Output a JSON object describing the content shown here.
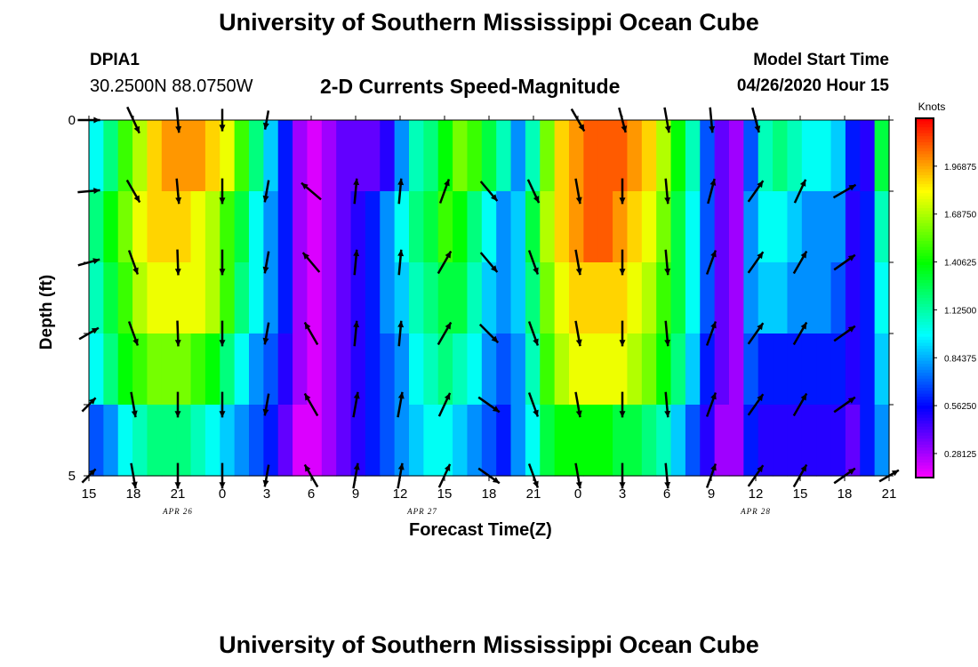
{
  "header": {
    "title": "University of Southern Mississippi Ocean Cube",
    "station_id": "DPIA1",
    "coords": "30.2500N 88.0750W",
    "subtitle": "2-D Currents Speed-Magnitude",
    "model_label": "Model Start Time",
    "model_time": "04/26/2020 Hour 15"
  },
  "footer": {
    "title": "University of Southern Mississippi Ocean Cube"
  },
  "chart_data": {
    "type": "heatmap",
    "title": "2-D Currents Speed-Magnitude",
    "xlabel": "Forecast Time(Z)",
    "ylabel": "Depth (ft)",
    "x_ticks": [
      "15",
      "18",
      "21",
      "0",
      "3",
      "6",
      "9",
      "12",
      "15",
      "18",
      "21",
      "0",
      "3",
      "6",
      "9",
      "12",
      "15",
      "18",
      "21"
    ],
    "date_labels": [
      {
        "text": "APR 26",
        "at_tick": 1.5
      },
      {
        "text": "APR 27",
        "at_tick": 7
      },
      {
        "text": "APR 28",
        "at_tick": 14.5
      }
    ],
    "y_ticks": [
      "0",
      "5"
    ],
    "y_range": [
      0,
      5
    ],
    "colorbar": {
      "label": "Knots",
      "min": 0.14,
      "max": 2.25,
      "ticks": [
        "1.96875",
        "1.68750",
        "1.40625",
        "1.12500",
        "0.84375",
        "0.56250",
        "0.28125"
      ],
      "tick_values": [
        1.96875,
        1.6875,
        1.40625,
        1.125,
        0.84375,
        0.5625,
        0.28125
      ]
    },
    "columns_per_tick": 3,
    "num_columns": 55,
    "num_rows": 5,
    "speed_rows": [
      [
        1.0,
        1.2,
        1.5,
        1.7,
        1.9,
        2.0,
        2.0,
        2.0,
        1.9,
        1.8,
        1.5,
        1.2,
        0.9,
        0.6,
        0.3,
        0.2,
        0.3,
        0.4,
        0.4,
        0.4,
        0.5,
        0.8,
        1.1,
        1.2,
        1.4,
        1.6,
        1.5,
        1.3,
        1.1,
        0.8,
        1.1,
        1.6,
        1.9,
        2.0,
        2.1,
        2.1,
        2.1,
        2.0,
        1.9,
        1.7,
        1.4,
        1.1,
        0.7,
        0.4,
        0.3,
        0.7,
        1.1,
        1.2,
        1.1,
        1.0,
        1.0,
        0.9,
        0.6,
        0.5,
        1.3
      ],
      [
        1.2,
        1.4,
        1.6,
        1.8,
        1.9,
        1.9,
        1.9,
        1.8,
        1.7,
        1.5,
        1.3,
        1.0,
        0.8,
        0.6,
        0.3,
        0.2,
        0.3,
        0.4,
        0.5,
        0.6,
        0.8,
        1.0,
        1.2,
        1.3,
        1.5,
        1.4,
        1.2,
        1.0,
        0.8,
        0.9,
        1.3,
        1.7,
        1.9,
        2.0,
        2.1,
        2.1,
        2.0,
        1.9,
        1.8,
        1.6,
        1.3,
        1.0,
        0.7,
        0.4,
        0.3,
        0.8,
        1.0,
        1.0,
        0.9,
        0.8,
        0.8,
        0.8,
        0.5,
        0.6,
        1.1
      ],
      [
        1.1,
        1.3,
        1.5,
        1.7,
        1.8,
        1.8,
        1.8,
        1.8,
        1.7,
        1.5,
        1.2,
        1.0,
        0.8,
        0.6,
        0.3,
        0.2,
        0.3,
        0.4,
        0.5,
        0.6,
        0.8,
        0.9,
        1.1,
        1.2,
        1.3,
        1.3,
        1.1,
        0.9,
        0.8,
        0.9,
        1.2,
        1.6,
        1.8,
        1.9,
        1.9,
        1.9,
        1.9,
        1.8,
        1.7,
        1.5,
        1.3,
        1.0,
        0.7,
        0.4,
        0.3,
        0.8,
        0.9,
        0.9,
        0.8,
        0.8,
        0.8,
        0.7,
        0.5,
        0.6,
        1.0
      ],
      [
        1.0,
        1.2,
        1.4,
        1.5,
        1.6,
        1.6,
        1.6,
        1.5,
        1.4,
        1.2,
        1.0,
        0.8,
        0.7,
        0.5,
        0.3,
        0.2,
        0.3,
        0.4,
        0.5,
        0.6,
        0.7,
        0.8,
        1.0,
        1.1,
        1.2,
        1.1,
        1.0,
        0.8,
        0.7,
        0.8,
        1.1,
        1.5,
        1.7,
        1.8,
        1.8,
        1.8,
        1.8,
        1.7,
        1.6,
        1.4,
        1.2,
        0.9,
        0.6,
        0.4,
        0.3,
        0.7,
        0.6,
        0.6,
        0.6,
        0.6,
        0.6,
        0.6,
        0.5,
        0.6,
        0.9
      ],
      [
        0.7,
        0.8,
        1.0,
        1.1,
        1.2,
        1.2,
        1.2,
        1.1,
        1.0,
        0.9,
        0.8,
        0.7,
        0.6,
        0.4,
        0.2,
        0.2,
        0.3,
        0.4,
        0.5,
        0.6,
        0.7,
        0.8,
        0.9,
        1.0,
        1.0,
        0.9,
        0.8,
        0.7,
        0.6,
        0.8,
        1.0,
        1.3,
        1.4,
        1.4,
        1.4,
        1.4,
        1.3,
        1.3,
        1.2,
        1.1,
        0.9,
        0.7,
        0.5,
        0.3,
        0.3,
        0.6,
        0.5,
        0.5,
        0.5,
        0.5,
        0.5,
        0.5,
        0.4,
        0.6,
        0.8
      ]
    ],
    "vector_rows": [
      [
        [
          0.7,
          90
        ],
        [
          0.9,
          155
        ],
        [
          0.8,
          175
        ],
        [
          0.7,
          180
        ],
        [
          0.6,
          190
        ],
        [
          0.2,
          0
        ],
        [
          0.2,
          0
        ],
        [
          0.2,
          0
        ],
        [
          0.2,
          0
        ],
        [
          0.2,
          0
        ],
        [
          0.2,
          0
        ],
        [
          0.8,
          150
        ],
        [
          0.8,
          165
        ],
        [
          0.8,
          170
        ],
        [
          0.8,
          175
        ],
        [
          0.8,
          165
        ],
        [
          0.2,
          0
        ],
        [
          0.2,
          0
        ],
        [
          0.2,
          0
        ],
        [
          0.2,
          0
        ]
      ],
      [
        [
          0.7,
          85
        ],
        [
          0.8,
          150
        ],
        [
          0.8,
          175
        ],
        [
          0.8,
          180
        ],
        [
          0.7,
          190
        ],
        [
          0.8,
          310
        ],
        [
          0.8,
          5
        ],
        [
          0.8,
          5
        ],
        [
          0.8,
          20
        ],
        [
          0.8,
          140
        ],
        [
          0.8,
          155
        ],
        [
          0.8,
          170
        ],
        [
          0.8,
          180
        ],
        [
          0.8,
          175
        ],
        [
          0.8,
          15
        ],
        [
          0.8,
          35
        ],
        [
          0.8,
          25
        ],
        [
          0.8,
          60
        ],
        [
          0.2,
          0
        ],
        [
          0.2,
          0
        ]
      ],
      [
        [
          0.7,
          75
        ],
        [
          0.8,
          160
        ],
        [
          0.8,
          178
        ],
        [
          0.8,
          180
        ],
        [
          0.7,
          190
        ],
        [
          0.8,
          320
        ],
        [
          0.8,
          5
        ],
        [
          0.8,
          5
        ],
        [
          0.8,
          30
        ],
        [
          0.8,
          140
        ],
        [
          0.8,
          160
        ],
        [
          0.8,
          170
        ],
        [
          0.8,
          180
        ],
        [
          0.8,
          175
        ],
        [
          0.8,
          20
        ],
        [
          0.8,
          35
        ],
        [
          0.8,
          30
        ],
        [
          0.8,
          55
        ],
        [
          0.2,
          0
        ],
        [
          0.2,
          0
        ]
      ],
      [
        [
          0.7,
          60
        ],
        [
          0.8,
          160
        ],
        [
          0.8,
          178
        ],
        [
          0.8,
          180
        ],
        [
          0.7,
          190
        ],
        [
          0.8,
          330
        ],
        [
          0.8,
          5
        ],
        [
          0.8,
          5
        ],
        [
          0.8,
          30
        ],
        [
          0.8,
          135
        ],
        [
          0.8,
          160
        ],
        [
          0.8,
          170
        ],
        [
          0.8,
          180
        ],
        [
          0.8,
          175
        ],
        [
          0.8,
          20
        ],
        [
          0.8,
          35
        ],
        [
          0.8,
          30
        ],
        [
          0.8,
          55
        ],
        [
          0.2,
          0
        ],
        [
          0.2,
          0
        ]
      ],
      [
        [
          0.6,
          45
        ],
        [
          0.8,
          170
        ],
        [
          0.8,
          180
        ],
        [
          0.8,
          180
        ],
        [
          0.7,
          190
        ],
        [
          0.8,
          330
        ],
        [
          0.8,
          10
        ],
        [
          0.8,
          10
        ],
        [
          0.8,
          25
        ],
        [
          0.8,
          125
        ],
        [
          0.8,
          160
        ],
        [
          0.8,
          170
        ],
        [
          0.8,
          180
        ],
        [
          0.8,
          175
        ],
        [
          0.8,
          20
        ],
        [
          0.8,
          35
        ],
        [
          0.8,
          30
        ],
        [
          0.8,
          55
        ],
        [
          0.2,
          0
        ],
        [
          0.2,
          0
        ]
      ],
      [
        [
          0.6,
          45
        ],
        [
          0.8,
          170
        ],
        [
          0.8,
          180
        ],
        [
          0.8,
          180
        ],
        [
          0.7,
          190
        ],
        [
          0.8,
          330
        ],
        [
          0.8,
          10
        ],
        [
          0.8,
          10
        ],
        [
          0.8,
          25
        ],
        [
          0.8,
          125
        ],
        [
          0.8,
          160
        ],
        [
          0.8,
          170
        ],
        [
          0.8,
          180
        ],
        [
          0.8,
          175
        ],
        [
          0.8,
          20
        ],
        [
          0.8,
          35
        ],
        [
          0.8,
          30
        ],
        [
          0.8,
          55
        ],
        [
          0.7,
          60
        ],
        [
          0.2,
          0
        ]
      ]
    ]
  }
}
